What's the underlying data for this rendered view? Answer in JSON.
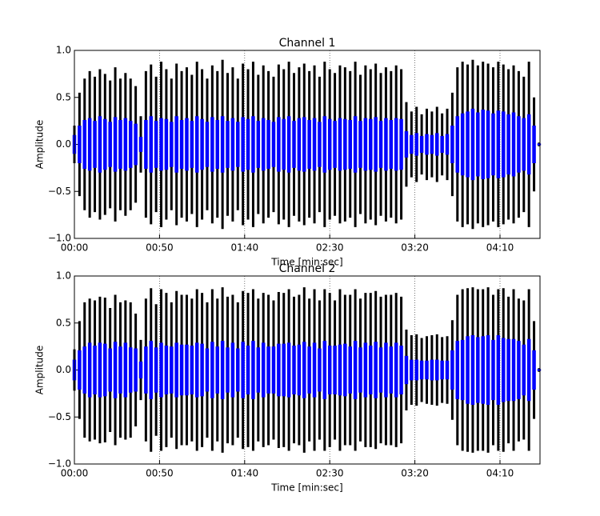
{
  "chart_data": [
    {
      "type": "waveform",
      "title": "Channel 1",
      "x_label": "Time [min:sec]",
      "y_label": "Amplitude",
      "x": [
        0,
        3,
        6,
        9,
        12,
        15,
        18,
        21,
        24,
        27,
        30,
        33,
        36,
        39,
        42,
        45,
        48,
        51,
        54,
        57,
        60,
        63,
        66,
        69,
        72,
        75,
        78,
        81,
        84,
        87,
        90,
        93,
        96,
        99,
        102,
        105,
        108,
        111,
        114,
        117,
        120,
        123,
        126,
        129,
        132,
        135,
        138,
        141,
        144,
        147,
        150,
        153,
        156,
        159,
        162,
        165,
        168,
        171,
        174,
        177,
        180,
        183,
        186,
        189,
        192,
        195,
        198,
        201,
        204,
        207,
        210,
        213,
        216,
        219,
        222,
        225,
        228,
        231,
        234,
        237,
        240,
        243,
        246,
        249,
        252,
        255,
        258,
        261,
        264,
        267,
        270,
        273
      ],
      "series": [
        {
          "color": "#000000",
          "values": [
            0.2,
            0.55,
            0.7,
            0.78,
            0.72,
            0.8,
            0.75,
            0.68,
            0.82,
            0.7,
            0.76,
            0.7,
            0.62,
            0.3,
            0.78,
            0.85,
            0.72,
            0.88,
            0.8,
            0.7,
            0.86,
            0.78,
            0.82,
            0.74,
            0.88,
            0.8,
            0.7,
            0.84,
            0.78,
            0.9,
            0.76,
            0.82,
            0.7,
            0.86,
            0.8,
            0.88,
            0.74,
            0.84,
            0.78,
            0.72,
            0.85,
            0.8,
            0.88,
            0.76,
            0.82,
            0.86,
            0.78,
            0.84,
            0.72,
            0.88,
            0.8,
            0.76,
            0.84,
            0.82,
            0.78,
            0.88,
            0.74,
            0.84,
            0.8,
            0.86,
            0.76,
            0.82,
            0.78,
            0.84,
            0.8,
            0.45,
            0.35,
            0.4,
            0.32,
            0.38,
            0.35,
            0.4,
            0.33,
            0.38,
            0.55,
            0.82,
            0.88,
            0.85,
            0.9,
            0.84,
            0.88,
            0.86,
            0.82,
            0.88,
            0.85,
            0.8,
            0.84,
            0.78,
            0.72,
            0.88,
            0.5,
            0.02
          ]
        },
        {
          "color": "#0000ff",
          "values": [
            0.1,
            0.2,
            0.26,
            0.28,
            0.25,
            0.3,
            0.27,
            0.24,
            0.29,
            0.26,
            0.28,
            0.25,
            0.22,
            0.08,
            0.26,
            0.3,
            0.25,
            0.28,
            0.27,
            0.24,
            0.3,
            0.26,
            0.28,
            0.25,
            0.3,
            0.27,
            0.24,
            0.29,
            0.26,
            0.3,
            0.25,
            0.28,
            0.24,
            0.29,
            0.27,
            0.3,
            0.25,
            0.28,
            0.26,
            0.24,
            0.29,
            0.27,
            0.3,
            0.25,
            0.28,
            0.29,
            0.26,
            0.28,
            0.24,
            0.3,
            0.27,
            0.25,
            0.28,
            0.27,
            0.26,
            0.3,
            0.25,
            0.28,
            0.27,
            0.29,
            0.25,
            0.28,
            0.26,
            0.28,
            0.27,
            0.14,
            0.1,
            0.12,
            0.09,
            0.11,
            0.1,
            0.12,
            0.09,
            0.11,
            0.2,
            0.3,
            0.33,
            0.35,
            0.38,
            0.34,
            0.37,
            0.36,
            0.33,
            0.36,
            0.35,
            0.32,
            0.34,
            0.3,
            0.28,
            0.32,
            0.2,
            0.01
          ]
        }
      ],
      "xlim": [
        0,
        273.5
      ],
      "ylim": [
        -1.0,
        1.0
      ],
      "xticks": [
        {
          "value": 0,
          "label": "00:00"
        },
        {
          "value": 50,
          "label": "00:50"
        },
        {
          "value": 100,
          "label": "01:40"
        },
        {
          "value": 150,
          "label": "02:30"
        },
        {
          "value": 200,
          "label": "03:20"
        },
        {
          "value": 250,
          "label": "04:10"
        }
      ],
      "yticks": [
        {
          "value": -1.0,
          "label": "−1.0"
        },
        {
          "value": -0.5,
          "label": "−0.5"
        },
        {
          "value": 0.0,
          "label": "0.0"
        },
        {
          "value": 0.5,
          "label": "0.5"
        },
        {
          "value": 1.0,
          "label": "1.0"
        }
      ],
      "grid": "x"
    },
    {
      "type": "waveform",
      "title": "Channel 2",
      "x_label": "Time [min:sec]",
      "y_label": "Amplitude",
      "x": [
        0,
        3,
        6,
        9,
        12,
        15,
        18,
        21,
        24,
        27,
        30,
        33,
        36,
        39,
        42,
        45,
        48,
        51,
        54,
        57,
        60,
        63,
        66,
        69,
        72,
        75,
        78,
        81,
        84,
        87,
        90,
        93,
        96,
        99,
        102,
        105,
        108,
        111,
        114,
        117,
        120,
        123,
        126,
        129,
        132,
        135,
        138,
        141,
        144,
        147,
        150,
        153,
        156,
        159,
        162,
        165,
        168,
        171,
        174,
        177,
        180,
        183,
        186,
        189,
        192,
        195,
        198,
        201,
        204,
        207,
        210,
        213,
        216,
        219,
        222,
        225,
        228,
        231,
        234,
        237,
        240,
        243,
        246,
        249,
        252,
        255,
        258,
        261,
        264,
        267,
        270,
        273
      ],
      "series": [
        {
          "color": "#000000",
          "values": [
            0.22,
            0.52,
            0.72,
            0.76,
            0.74,
            0.78,
            0.77,
            0.66,
            0.8,
            0.72,
            0.74,
            0.72,
            0.6,
            0.32,
            0.76,
            0.87,
            0.7,
            0.86,
            0.82,
            0.72,
            0.84,
            0.8,
            0.8,
            0.76,
            0.86,
            0.82,
            0.72,
            0.86,
            0.76,
            0.88,
            0.78,
            0.8,
            0.72,
            0.84,
            0.82,
            0.86,
            0.76,
            0.82,
            0.8,
            0.74,
            0.83,
            0.82,
            0.86,
            0.78,
            0.8,
            0.88,
            0.76,
            0.86,
            0.74,
            0.86,
            0.82,
            0.74,
            0.86,
            0.8,
            0.8,
            0.86,
            0.76,
            0.82,
            0.82,
            0.84,
            0.78,
            0.8,
            0.8,
            0.82,
            0.78,
            0.43,
            0.37,
            0.38,
            0.34,
            0.36,
            0.37,
            0.38,
            0.35,
            0.36,
            0.53,
            0.8,
            0.86,
            0.87,
            0.88,
            0.86,
            0.86,
            0.88,
            0.8,
            0.86,
            0.87,
            0.78,
            0.86,
            0.76,
            0.74,
            0.86,
            0.52,
            0.02
          ]
        },
        {
          "color": "#0000ff",
          "values": [
            0.11,
            0.21,
            0.25,
            0.29,
            0.26,
            0.29,
            0.28,
            0.23,
            0.3,
            0.25,
            0.29,
            0.24,
            0.23,
            0.09,
            0.25,
            0.31,
            0.24,
            0.29,
            0.26,
            0.25,
            0.29,
            0.27,
            0.27,
            0.26,
            0.29,
            0.28,
            0.23,
            0.3,
            0.25,
            0.31,
            0.24,
            0.29,
            0.23,
            0.3,
            0.26,
            0.31,
            0.24,
            0.29,
            0.25,
            0.25,
            0.28,
            0.28,
            0.29,
            0.26,
            0.27,
            0.3,
            0.25,
            0.29,
            0.23,
            0.31,
            0.26,
            0.26,
            0.27,
            0.28,
            0.25,
            0.31,
            0.24,
            0.29,
            0.26,
            0.3,
            0.24,
            0.29,
            0.25,
            0.29,
            0.26,
            0.15,
            0.11,
            0.11,
            0.1,
            0.1,
            0.11,
            0.11,
            0.1,
            0.1,
            0.21,
            0.31,
            0.32,
            0.36,
            0.37,
            0.35,
            0.36,
            0.37,
            0.32,
            0.37,
            0.34,
            0.33,
            0.33,
            0.31,
            0.27,
            0.33,
            0.21,
            0.01
          ]
        }
      ],
      "xlim": [
        0,
        273.5
      ],
      "ylim": [
        -1.0,
        1.0
      ],
      "xticks": [
        {
          "value": 0,
          "label": "00:00"
        },
        {
          "value": 50,
          "label": "00:50"
        },
        {
          "value": 100,
          "label": "01:40"
        },
        {
          "value": 150,
          "label": "02:30"
        },
        {
          "value": 200,
          "label": "03:20"
        },
        {
          "value": 250,
          "label": "04:10"
        }
      ],
      "yticks": [
        {
          "value": -1.0,
          "label": "−1.0"
        },
        {
          "value": -0.5,
          "label": "−0.5"
        },
        {
          "value": 0.0,
          "label": "0.0"
        },
        {
          "value": 0.5,
          "label": "0.5"
        },
        {
          "value": 1.0,
          "label": "1.0"
        }
      ],
      "grid": "x"
    }
  ]
}
